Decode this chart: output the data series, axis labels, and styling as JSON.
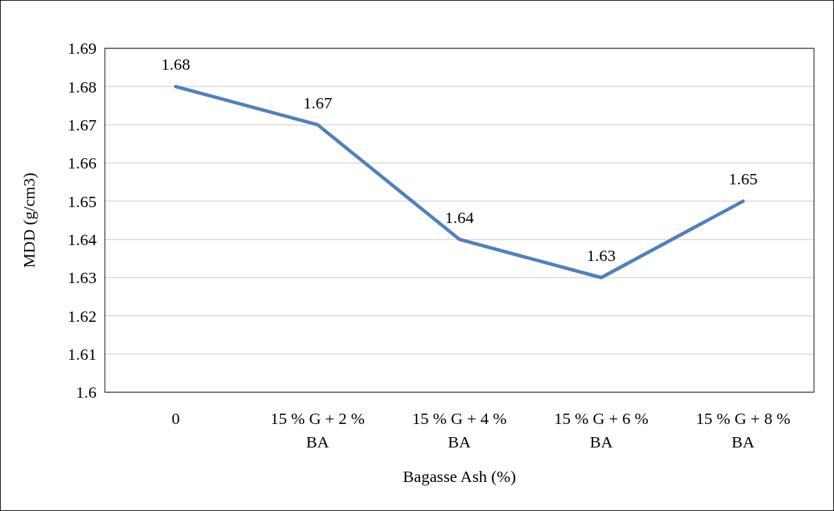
{
  "chart_data": {
    "type": "line",
    "xlabel": "Bagasse Ash (%)",
    "ylabel": "MDD (g/cm3)",
    "categories": [
      "0",
      "15 % G + 2 % BA",
      "15 % G + 4 % BA",
      "15 % G + 6 % BA",
      "15 % G + 8 % BA"
    ],
    "series": [
      {
        "color": "#4f81bd",
        "values": [
          1.68,
          1.67,
          1.64,
          1.63,
          1.65
        ]
      }
    ],
    "ylim": [
      1.6,
      1.69
    ],
    "yticks": [
      1.6,
      1.61,
      1.62,
      1.63,
      1.64,
      1.65,
      1.66,
      1.67,
      1.68,
      1.69
    ],
    "grid": "y",
    "data_labels": true,
    "marker": "none",
    "line_style": "solid"
  }
}
